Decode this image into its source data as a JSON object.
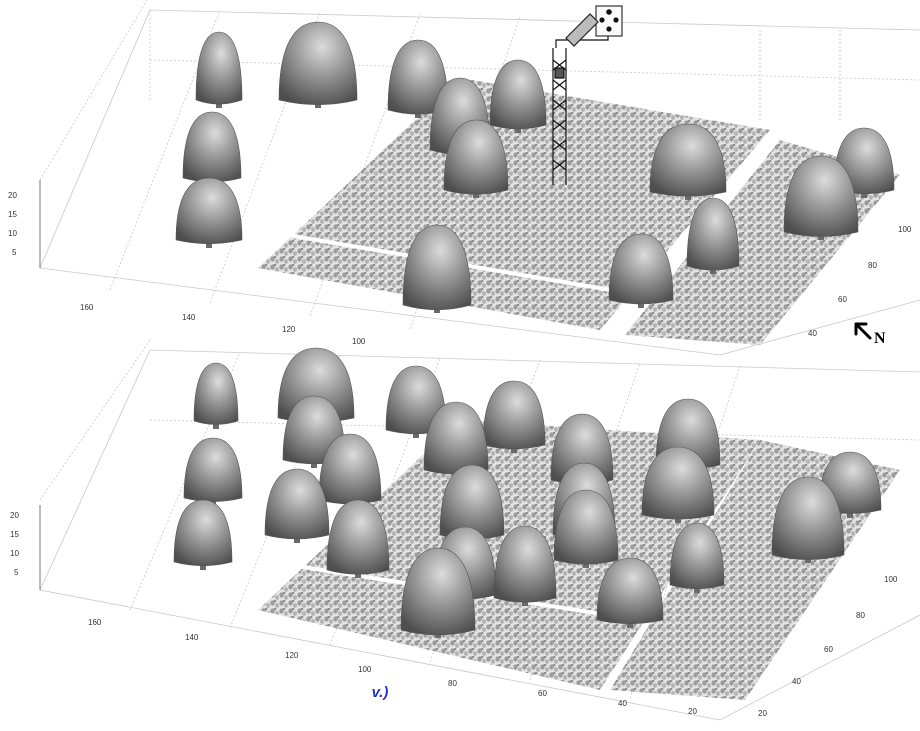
{
  "caption": "v.)",
  "north_label": "N",
  "top_panel": {
    "z_ticks": [
      "20",
      "15",
      "10",
      "5"
    ],
    "x_ticks": [
      "160",
      "140",
      "120",
      "100"
    ],
    "y_ticks": [
      "100",
      "80",
      "60",
      "40"
    ]
  },
  "bottom_panel": {
    "z_ticks": [
      "20",
      "15",
      "10",
      "5"
    ],
    "x_ticks": [
      "160",
      "140",
      "120",
      "100",
      "80",
      "60",
      "40",
      "20"
    ],
    "y_ticks": [
      "100",
      "80",
      "60",
      "40",
      "20"
    ]
  },
  "colors": {
    "crown": "#8a8a8a",
    "crown_highlight": "#d6d6d6",
    "crown_shadow": "#4a4a4a",
    "understory": "#a9a9a9",
    "grid": "#c8c8c8",
    "caption": "#2233cc"
  },
  "icons": {
    "north": "north-arrow-icon",
    "tower": "instrument-tower-icon",
    "sensor": "sensor-head-icon"
  }
}
